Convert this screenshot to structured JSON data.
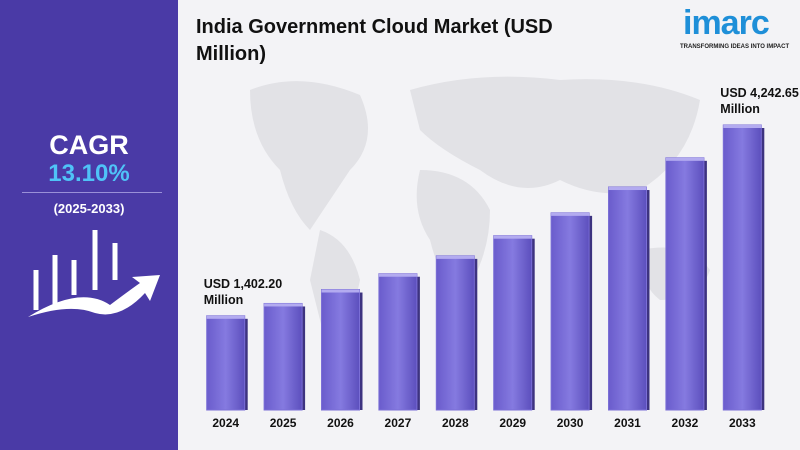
{
  "chart_data": {
    "type": "bar",
    "title": "India Government Cloud Market (USD Million)",
    "categories": [
      "2024",
      "2025",
      "2026",
      "2027",
      "2028",
      "2029",
      "2030",
      "2031",
      "2032",
      "2033"
    ],
    "values": [
      1402.2,
      1585.9,
      1793.6,
      2028.6,
      2294.3,
      2594.9,
      2934.8,
      3319.3,
      3754.1,
      4242.65
    ],
    "value_labels": [
      "USD 1,402.20 Million",
      null,
      null,
      null,
      null,
      null,
      null,
      null,
      null,
      "USD 4,242.65 Million"
    ],
    "color": "#7b6fd6"
  },
  "cagr": {
    "title": "CAGR",
    "rate": {
      "value": 13.1,
      "label": "13.10%"
    },
    "period": "(2025-2033)"
  },
  "branding": {
    "logo": "imarc",
    "tagline": "TRANSFORMING IDEAS INTO IMPACT"
  }
}
